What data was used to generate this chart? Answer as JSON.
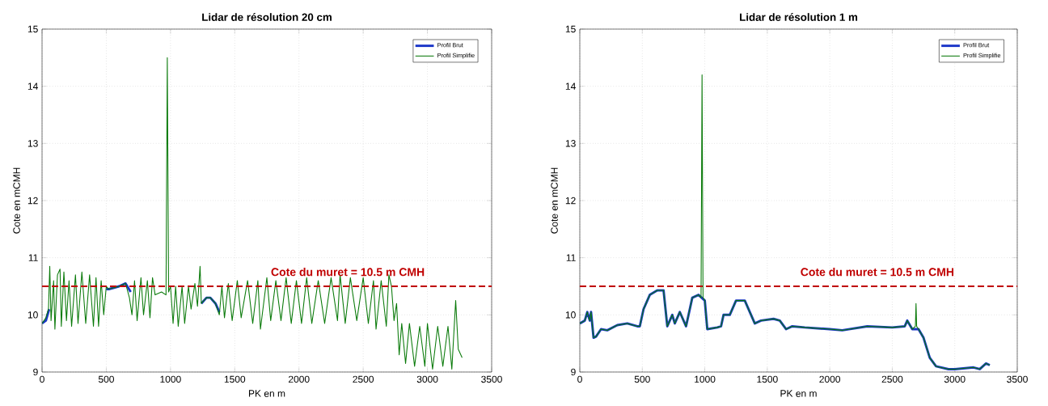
{
  "chart_data": [
    {
      "type": "line",
      "title": "Lidar de résolution 20 cm",
      "xlabel": "PK en m",
      "ylabel": "Cote en mCMH",
      "xlim": [
        0,
        3500
      ],
      "ylim": [
        9,
        15
      ],
      "xticks": [
        0,
        500,
        1000,
        1500,
        2000,
        2500,
        3000,
        3500
      ],
      "yticks": [
        9,
        10,
        11,
        12,
        13,
        14,
        15
      ],
      "grid": true,
      "legend": "top right",
      "marker": "none",
      "series": [
        {
          "name": "Profil Brut",
          "color": "#1a35c8",
          "line_style": "solid",
          "x": [
            0,
            30,
            55,
            300,
            500,
            520,
            600,
            650,
            690,
            1100,
            1240,
            1280,
            1310,
            1350,
            1380
          ],
          "values": [
            9.85,
            9.9,
            10.1,
            null,
            10.45,
            10.45,
            10.5,
            10.55,
            10.4,
            null,
            10.2,
            10.3,
            10.3,
            10.2,
            10.05
          ]
        },
        {
          "name": "Profil Simplifie",
          "color": "#0a7a0a",
          "line_style": "solid",
          "x": [
            0,
            30,
            50,
            60,
            70,
            90,
            100,
            120,
            140,
            150,
            170,
            190,
            210,
            230,
            260,
            280,
            310,
            340,
            370,
            400,
            420,
            440,
            460,
            480,
            500,
            520,
            600,
            650,
            680,
            700,
            720,
            740,
            770,
            790,
            820,
            840,
            860,
            880,
            930,
            965,
            975,
            985,
            1000,
            1020,
            1040,
            1060,
            1090,
            1110,
            1140,
            1160,
            1190,
            1210,
            1230,
            1240,
            1280,
            1310,
            1350,
            1380,
            1400,
            1420,
            1450,
            1480,
            1520,
            1550,
            1600,
            1640,
            1680,
            1700,
            1750,
            1780,
            1820,
            1860,
            1900,
            1940,
            1980,
            2020,
            2060,
            2100,
            2150,
            2200,
            2250,
            2300,
            2320,
            2360,
            2400,
            2450,
            2500,
            2540,
            2580,
            2600,
            2640,
            2680,
            2700,
            2720,
            2740,
            2760,
            2780,
            2800,
            2830,
            2860,
            2900,
            2940,
            2980,
            3000,
            3040,
            3080,
            3120,
            3160,
            3190,
            3220,
            3240,
            3260,
            3270
          ],
          "values": [
            9.85,
            9.95,
            10.1,
            10.85,
            9.9,
            10.6,
            9.75,
            10.7,
            10.8,
            9.8,
            10.75,
            9.9,
            10.6,
            9.8,
            10.7,
            9.85,
            10.75,
            9.85,
            10.7,
            9.8,
            10.65,
            9.8,
            10.6,
            10.0,
            10.5,
            10.45,
            10.5,
            10.55,
            10.3,
            10.0,
            10.6,
            9.9,
            10.65,
            10.0,
            10.6,
            9.95,
            10.65,
            10.35,
            10.4,
            10.35,
            14.5,
            10.4,
            10.5,
            9.85,
            10.5,
            9.8,
            10.5,
            9.85,
            10.5,
            10.1,
            10.55,
            10.15,
            10.85,
            10.2,
            10.3,
            10.3,
            10.2,
            10.0,
            10.5,
            9.95,
            10.55,
            9.9,
            10.6,
            9.95,
            10.6,
            9.85,
            10.6,
            9.75,
            10.65,
            9.9,
            10.6,
            9.9,
            10.65,
            9.85,
            10.6,
            9.85,
            10.65,
            9.85,
            10.6,
            9.85,
            10.65,
            9.9,
            10.7,
            9.85,
            10.65,
            9.9,
            10.65,
            9.85,
            10.6,
            9.75,
            10.6,
            9.8,
            10.7,
            10.5,
            9.9,
            10.2,
            9.3,
            9.85,
            9.15,
            9.85,
            9.1,
            9.8,
            9.1,
            9.85,
            9.05,
            9.8,
            9.1,
            9.8,
            9.05,
            10.25,
            9.4,
            9.3,
            9.25
          ]
        }
      ],
      "ref_lines": [
        {
          "axis": "y",
          "value": 10.5,
          "label": "Cote du muret = 10.5 m CMH",
          "color": "#c00000",
          "line_style": "dashed"
        }
      ]
    },
    {
      "type": "line",
      "title": "Lidar de résolution 1 m",
      "xlabel": "PK en m",
      "ylabel": "Cote en mCMH",
      "xlim": [
        0,
        3500
      ],
      "ylim": [
        9,
        15
      ],
      "xticks": [
        0,
        500,
        1000,
        1500,
        2000,
        2500,
        3000,
        3500
      ],
      "yticks": [
        9,
        10,
        11,
        12,
        13,
        14,
        15
      ],
      "grid": true,
      "legend": "top right",
      "marker": "none",
      "series": [
        {
          "name": "Profil Brut",
          "color": "#1a35c8",
          "line_style": "solid",
          "x": [
            0,
            40,
            60,
            80,
            90,
            110,
            130,
            170,
            220,
            300,
            380,
            460,
            480,
            510,
            560,
            620,
            670,
            700,
            740,
            760,
            800,
            850,
            900,
            950,
            975,
            1000,
            1020,
            1100,
            1130,
            1150,
            1200,
            1250,
            1320,
            1400,
            1450,
            1550,
            1600,
            1650,
            1700,
            1800,
            2000,
            2100,
            2300,
            2500,
            2600,
            2620,
            2660,
            2710,
            2750,
            2800,
            2850,
            2950,
            3000,
            3150,
            3200,
            3250,
            3280
          ],
          "values": [
            9.85,
            9.9,
            10.05,
            9.9,
            10.05,
            9.6,
            9.62,
            9.75,
            9.73,
            9.82,
            9.85,
            9.8,
            9.8,
            10.1,
            10.35,
            10.43,
            10.43,
            9.8,
            10.0,
            9.85,
            10.05,
            9.8,
            10.3,
            10.35,
            10.3,
            10.25,
            9.75,
            9.78,
            9.8,
            10.0,
            10.0,
            10.25,
            10.25,
            9.85,
            9.9,
            9.93,
            9.9,
            9.75,
            9.8,
            9.78,
            9.75,
            9.73,
            9.8,
            9.78,
            9.8,
            9.9,
            9.75,
            9.75,
            9.6,
            9.25,
            9.1,
            9.05,
            9.05,
            9.08,
            9.05,
            9.15,
            9.12
          ]
        },
        {
          "name": "Profil Simplifie",
          "color": "#0a7a0a",
          "line_style": "solid",
          "x": [
            0,
            40,
            60,
            80,
            90,
            110,
            130,
            170,
            220,
            300,
            380,
            460,
            480,
            510,
            560,
            620,
            670,
            700,
            740,
            760,
            800,
            850,
            900,
            950,
            970,
            978,
            986,
            1000,
            1020,
            1100,
            1130,
            1150,
            1200,
            1250,
            1320,
            1400,
            1450,
            1550,
            1600,
            1650,
            1700,
            1800,
            2000,
            2100,
            2300,
            2500,
            2600,
            2620,
            2660,
            2685,
            2690,
            2695,
            2710,
            2750,
            2800,
            2850,
            2950,
            3000,
            3150,
            3200,
            3250,
            3280
          ],
          "values": [
            9.85,
            9.9,
            10.05,
            9.9,
            10.05,
            9.6,
            9.62,
            9.75,
            9.73,
            9.82,
            9.85,
            9.8,
            9.8,
            10.1,
            10.35,
            10.43,
            10.43,
            9.8,
            10.0,
            9.85,
            10.05,
            9.8,
            10.3,
            10.35,
            10.3,
            14.2,
            10.3,
            10.25,
            9.75,
            9.78,
            9.8,
            10.0,
            10.0,
            10.25,
            10.25,
            9.85,
            9.9,
            9.93,
            9.9,
            9.75,
            9.8,
            9.78,
            9.75,
            9.73,
            9.8,
            9.78,
            9.8,
            9.9,
            9.75,
            9.8,
            10.2,
            9.8,
            9.75,
            9.6,
            9.25,
            9.1,
            9.05,
            9.05,
            9.08,
            9.05,
            9.15,
            9.12
          ]
        }
      ],
      "ref_lines": [
        {
          "axis": "y",
          "value": 10.5,
          "label": "Cote du muret = 10.5 m CMH",
          "color": "#c00000",
          "line_style": "dashed"
        }
      ]
    }
  ]
}
